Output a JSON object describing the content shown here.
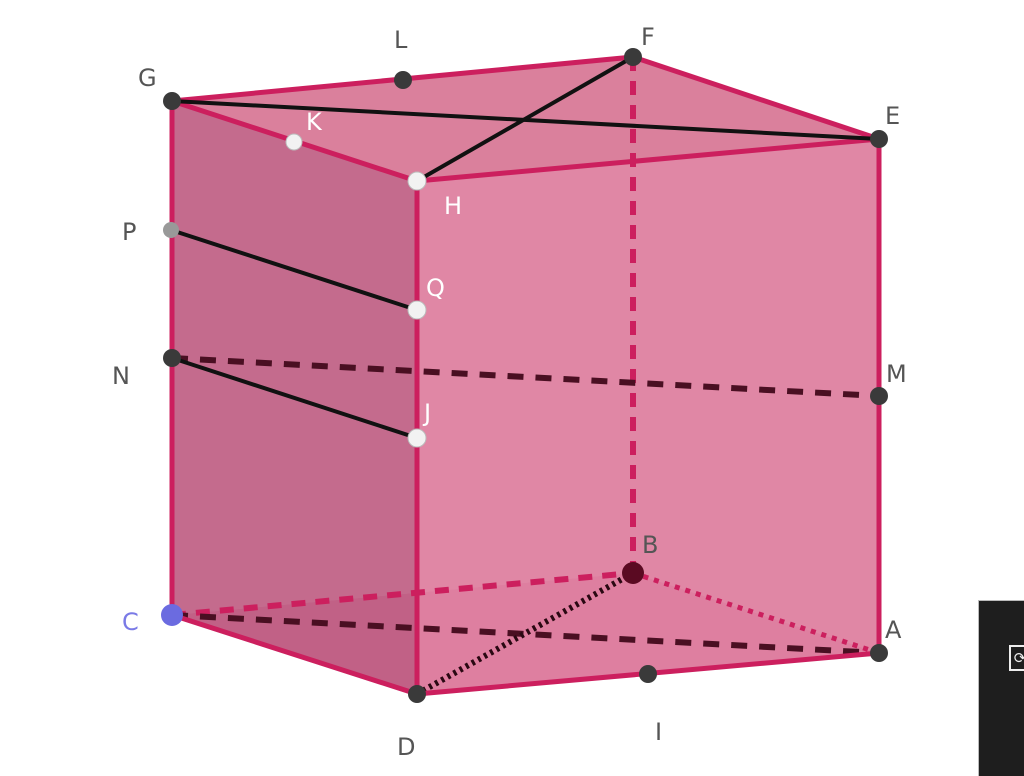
{
  "colors": {
    "edge": "#cc1f5e",
    "face": "#d4668e",
    "point_dark": "#3a3a3a",
    "point_light": "#f2f2f2",
    "point_blue": "#6b6be0",
    "segment": "#111111"
  },
  "points": {
    "A": "A",
    "B": "B",
    "C": "C",
    "D": "D",
    "E": "E",
    "F": "F",
    "G": "G",
    "H": "H",
    "I": "I",
    "J": "J",
    "K": "K",
    "L": "L",
    "M": "M",
    "N": "N",
    "P": "P",
    "Q": "Q"
  },
  "panel": {
    "icon": "view-toggle-icon"
  }
}
